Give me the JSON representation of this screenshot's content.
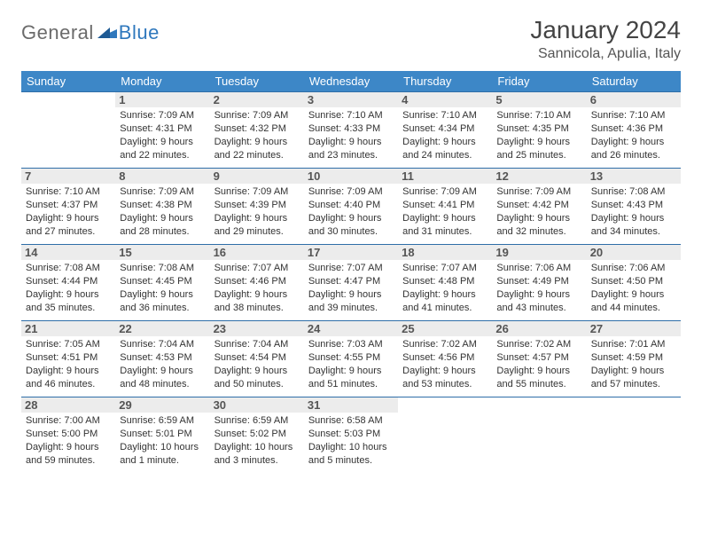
{
  "logo": {
    "general": "General",
    "blue": "Blue"
  },
  "title": "January 2024",
  "subtitle": "Sannicola, Apulia, Italy",
  "colors": {
    "header_bg": "#3d87c7",
    "header_text": "#ffffff",
    "row_border": "#2f6ea8",
    "daynum_bg": "#ececec",
    "daynum_text": "#555555",
    "body_text": "#333333",
    "logo_gray": "#6b6b6b",
    "logo_blue": "#2f78bd"
  },
  "weekdays": [
    "Sunday",
    "Monday",
    "Tuesday",
    "Wednesday",
    "Thursday",
    "Friday",
    "Saturday"
  ],
  "weeks": [
    [
      null,
      {
        "n": "1",
        "sr": "Sunrise: 7:09 AM",
        "ss": "Sunset: 4:31 PM",
        "d1": "Daylight: 9 hours",
        "d2": "and 22 minutes."
      },
      {
        "n": "2",
        "sr": "Sunrise: 7:09 AM",
        "ss": "Sunset: 4:32 PM",
        "d1": "Daylight: 9 hours",
        "d2": "and 22 minutes."
      },
      {
        "n": "3",
        "sr": "Sunrise: 7:10 AM",
        "ss": "Sunset: 4:33 PM",
        "d1": "Daylight: 9 hours",
        "d2": "and 23 minutes."
      },
      {
        "n": "4",
        "sr": "Sunrise: 7:10 AM",
        "ss": "Sunset: 4:34 PM",
        "d1": "Daylight: 9 hours",
        "d2": "and 24 minutes."
      },
      {
        "n": "5",
        "sr": "Sunrise: 7:10 AM",
        "ss": "Sunset: 4:35 PM",
        "d1": "Daylight: 9 hours",
        "d2": "and 25 minutes."
      },
      {
        "n": "6",
        "sr": "Sunrise: 7:10 AM",
        "ss": "Sunset: 4:36 PM",
        "d1": "Daylight: 9 hours",
        "d2": "and 26 minutes."
      }
    ],
    [
      {
        "n": "7",
        "sr": "Sunrise: 7:10 AM",
        "ss": "Sunset: 4:37 PM",
        "d1": "Daylight: 9 hours",
        "d2": "and 27 minutes."
      },
      {
        "n": "8",
        "sr": "Sunrise: 7:09 AM",
        "ss": "Sunset: 4:38 PM",
        "d1": "Daylight: 9 hours",
        "d2": "and 28 minutes."
      },
      {
        "n": "9",
        "sr": "Sunrise: 7:09 AM",
        "ss": "Sunset: 4:39 PM",
        "d1": "Daylight: 9 hours",
        "d2": "and 29 minutes."
      },
      {
        "n": "10",
        "sr": "Sunrise: 7:09 AM",
        "ss": "Sunset: 4:40 PM",
        "d1": "Daylight: 9 hours",
        "d2": "and 30 minutes."
      },
      {
        "n": "11",
        "sr": "Sunrise: 7:09 AM",
        "ss": "Sunset: 4:41 PM",
        "d1": "Daylight: 9 hours",
        "d2": "and 31 minutes."
      },
      {
        "n": "12",
        "sr": "Sunrise: 7:09 AM",
        "ss": "Sunset: 4:42 PM",
        "d1": "Daylight: 9 hours",
        "d2": "and 32 minutes."
      },
      {
        "n": "13",
        "sr": "Sunrise: 7:08 AM",
        "ss": "Sunset: 4:43 PM",
        "d1": "Daylight: 9 hours",
        "d2": "and 34 minutes."
      }
    ],
    [
      {
        "n": "14",
        "sr": "Sunrise: 7:08 AM",
        "ss": "Sunset: 4:44 PM",
        "d1": "Daylight: 9 hours",
        "d2": "and 35 minutes."
      },
      {
        "n": "15",
        "sr": "Sunrise: 7:08 AM",
        "ss": "Sunset: 4:45 PM",
        "d1": "Daylight: 9 hours",
        "d2": "and 36 minutes."
      },
      {
        "n": "16",
        "sr": "Sunrise: 7:07 AM",
        "ss": "Sunset: 4:46 PM",
        "d1": "Daylight: 9 hours",
        "d2": "and 38 minutes."
      },
      {
        "n": "17",
        "sr": "Sunrise: 7:07 AM",
        "ss": "Sunset: 4:47 PM",
        "d1": "Daylight: 9 hours",
        "d2": "and 39 minutes."
      },
      {
        "n": "18",
        "sr": "Sunrise: 7:07 AM",
        "ss": "Sunset: 4:48 PM",
        "d1": "Daylight: 9 hours",
        "d2": "and 41 minutes."
      },
      {
        "n": "19",
        "sr": "Sunrise: 7:06 AM",
        "ss": "Sunset: 4:49 PM",
        "d1": "Daylight: 9 hours",
        "d2": "and 43 minutes."
      },
      {
        "n": "20",
        "sr": "Sunrise: 7:06 AM",
        "ss": "Sunset: 4:50 PM",
        "d1": "Daylight: 9 hours",
        "d2": "and 44 minutes."
      }
    ],
    [
      {
        "n": "21",
        "sr": "Sunrise: 7:05 AM",
        "ss": "Sunset: 4:51 PM",
        "d1": "Daylight: 9 hours",
        "d2": "and 46 minutes."
      },
      {
        "n": "22",
        "sr": "Sunrise: 7:04 AM",
        "ss": "Sunset: 4:53 PM",
        "d1": "Daylight: 9 hours",
        "d2": "and 48 minutes."
      },
      {
        "n": "23",
        "sr": "Sunrise: 7:04 AM",
        "ss": "Sunset: 4:54 PM",
        "d1": "Daylight: 9 hours",
        "d2": "and 50 minutes."
      },
      {
        "n": "24",
        "sr": "Sunrise: 7:03 AM",
        "ss": "Sunset: 4:55 PM",
        "d1": "Daylight: 9 hours",
        "d2": "and 51 minutes."
      },
      {
        "n": "25",
        "sr": "Sunrise: 7:02 AM",
        "ss": "Sunset: 4:56 PM",
        "d1": "Daylight: 9 hours",
        "d2": "and 53 minutes."
      },
      {
        "n": "26",
        "sr": "Sunrise: 7:02 AM",
        "ss": "Sunset: 4:57 PM",
        "d1": "Daylight: 9 hours",
        "d2": "and 55 minutes."
      },
      {
        "n": "27",
        "sr": "Sunrise: 7:01 AM",
        "ss": "Sunset: 4:59 PM",
        "d1": "Daylight: 9 hours",
        "d2": "and 57 minutes."
      }
    ],
    [
      {
        "n": "28",
        "sr": "Sunrise: 7:00 AM",
        "ss": "Sunset: 5:00 PM",
        "d1": "Daylight: 9 hours",
        "d2": "and 59 minutes."
      },
      {
        "n": "29",
        "sr": "Sunrise: 6:59 AM",
        "ss": "Sunset: 5:01 PM",
        "d1": "Daylight: 10 hours",
        "d2": "and 1 minute."
      },
      {
        "n": "30",
        "sr": "Sunrise: 6:59 AM",
        "ss": "Sunset: 5:02 PM",
        "d1": "Daylight: 10 hours",
        "d2": "and 3 minutes."
      },
      {
        "n": "31",
        "sr": "Sunrise: 6:58 AM",
        "ss": "Sunset: 5:03 PM",
        "d1": "Daylight: 10 hours",
        "d2": "and 5 minutes."
      },
      null,
      null,
      null
    ]
  ]
}
